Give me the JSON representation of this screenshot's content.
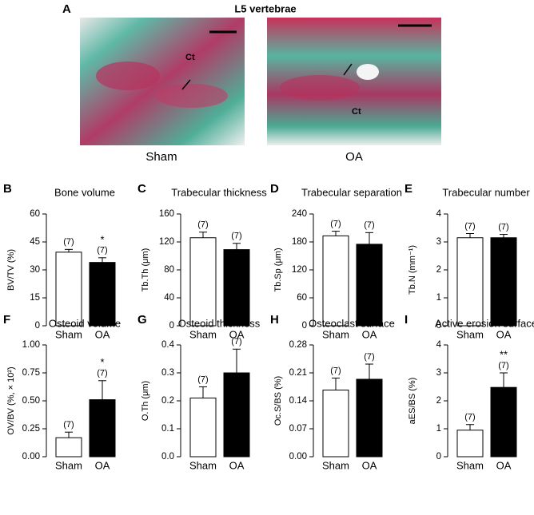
{
  "panel_a": {
    "label": "A",
    "title": "L5 vertebrae",
    "images": [
      {
        "caption": "Sham",
        "annotation": "Ct"
      },
      {
        "caption": "OA",
        "annotation": "Ct"
      }
    ]
  },
  "chart_data": [
    {
      "type": "bar",
      "panel": "B",
      "title": "Bone volume",
      "ylabel": "BV/TV (%)",
      "categories": [
        "Sham",
        "OA"
      ],
      "values": [
        39.5,
        34
      ],
      "errors": [
        1.5,
        2.5
      ],
      "n_labels": [
        "(7)",
        "(7)"
      ],
      "significance": [
        null,
        "*"
      ],
      "colors": [
        "#ffffff",
        "#000000"
      ],
      "ylim": [
        0,
        60
      ],
      "yticks": [
        0,
        15,
        30,
        45,
        60
      ]
    },
    {
      "type": "bar",
      "panel": "C",
      "title": "Trabecular thickness",
      "ylabel": "Tb.Th (μm)",
      "categories": [
        "Sham",
        "OA"
      ],
      "values": [
        126,
        109
      ],
      "errors": [
        8,
        9
      ],
      "n_labels": [
        "(7)",
        "(7)"
      ],
      "significance": [
        null,
        null
      ],
      "colors": [
        "#ffffff",
        "#000000"
      ],
      "ylim": [
        0,
        160
      ],
      "yticks": [
        0,
        40,
        80,
        120,
        160
      ]
    },
    {
      "type": "bar",
      "panel": "D",
      "title": "Trabecular separation",
      "ylabel": "Tb.Sp (μm)",
      "categories": [
        "Sham",
        "OA"
      ],
      "values": [
        193,
        175
      ],
      "errors": [
        10,
        25
      ],
      "n_labels": [
        "(7)",
        "(7)"
      ],
      "significance": [
        null,
        null
      ],
      "colors": [
        "#ffffff",
        "#000000"
      ],
      "ylim": [
        0,
        240
      ],
      "yticks": [
        0,
        60,
        120,
        180,
        240
      ]
    },
    {
      "type": "bar",
      "panel": "E",
      "title": "Trabecular number",
      "ylabel": "Tb.N (mm⁻¹)",
      "categories": [
        "Sham",
        "OA"
      ],
      "values": [
        3.15,
        3.15
      ],
      "errors": [
        0.15,
        0.12
      ],
      "n_labels": [
        "(7)",
        "(7)"
      ],
      "significance": [
        null,
        null
      ],
      "colors": [
        "#ffffff",
        "#000000"
      ],
      "ylim": [
        0,
        4
      ],
      "yticks": [
        0,
        1,
        2,
        3,
        4
      ]
    },
    {
      "type": "bar",
      "panel": "F",
      "title": "Osteoid volume",
      "ylabel": "OV/BV (%, × 10²)",
      "categories": [
        "Sham",
        "OA"
      ],
      "values": [
        0.17,
        0.51
      ],
      "errors": [
        0.05,
        0.17
      ],
      "n_labels": [
        "(7)",
        "(7)"
      ],
      "significance": [
        null,
        "*"
      ],
      "colors": [
        "#ffffff",
        "#000000"
      ],
      "ylim": [
        0,
        1
      ],
      "yticks": [
        {
          "value": 0,
          "label": "0.00"
        },
        0.25,
        {
          "value": 0.5,
          "label": "0.50"
        },
        0.75,
        {
          "value": 1,
          "label": "1.00"
        }
      ]
    },
    {
      "type": "bar",
      "panel": "G",
      "title": "Osteoid thickness",
      "ylabel": "O.Th (μm)",
      "categories": [
        "Sham",
        "OA"
      ],
      "values": [
        0.21,
        0.3
      ],
      "errors": [
        0.04,
        0.085
      ],
      "n_labels": [
        "(7)",
        "(7)"
      ],
      "significance": [
        null,
        null
      ],
      "colors": [
        "#ffffff",
        "#000000"
      ],
      "ylim": [
        0,
        0.4
      ],
      "yticks": [
        {
          "value": 0,
          "label": "0.0"
        },
        0.1,
        0.2,
        0.3,
        0.4
      ]
    },
    {
      "type": "bar",
      "panel": "H",
      "title": "Osteoclast surface",
      "ylabel": "Oc.S/BS (%)",
      "categories": [
        "Sham",
        "OA"
      ],
      "values": [
        0.167,
        0.194
      ],
      "errors": [
        0.03,
        0.038
      ],
      "n_labels": [
        "(7)",
        "(7)"
      ],
      "significance": [
        null,
        null
      ],
      "colors": [
        "#ffffff",
        "#000000"
      ],
      "ylim": [
        0,
        0.28
      ],
      "yticks": [
        {
          "value": 0,
          "label": "0.00"
        },
        0.07,
        0.14,
        0.21,
        0.28
      ]
    },
    {
      "type": "bar",
      "panel": "I",
      "title": "Active erosion surface",
      "ylabel": "aES/BS (%)",
      "categories": [
        "Sham",
        "OA"
      ],
      "values": [
        0.95,
        2.48
      ],
      "errors": [
        0.2,
        0.52
      ],
      "n_labels": [
        "(7)",
        "(7)"
      ],
      "significance": [
        null,
        "**"
      ],
      "colors": [
        "#ffffff",
        "#000000"
      ],
      "ylim": [
        0,
        4
      ],
      "yticks": [
        0,
        1,
        2,
        3,
        4
      ]
    }
  ]
}
